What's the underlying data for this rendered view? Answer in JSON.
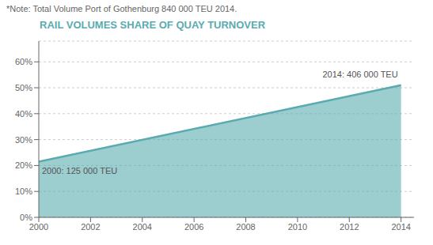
{
  "chart_data": {
    "type": "area",
    "title": "RAIL VOLUMES SHARE OF QUAY TURNOVER",
    "note": "*Note: Total Volume Port of Gothenburg 840 000 TEU 2014.",
    "x": [
      2000,
      2014
    ],
    "values": [
      0.215,
      0.51
    ],
    "color": "#5aabaf",
    "xlim": [
      2000,
      2014.5
    ],
    "xticks": [
      2000,
      2002,
      2004,
      2006,
      2008,
      2010,
      2012,
      2014
    ],
    "ylim": [
      0,
      0.68
    ],
    "yticks": [
      {
        "value": 0.0,
        "label": "0%"
      },
      {
        "value": 0.1,
        "label": "10%"
      },
      {
        "value": 0.2,
        "label": "20%"
      },
      {
        "value": 0.3,
        "label": "30%"
      },
      {
        "value": 0.4,
        "label": "40%"
      },
      {
        "value": 0.5,
        "label": "50%"
      },
      {
        "value": 0.6,
        "label": "60%"
      }
    ],
    "grid": true,
    "annotations": [
      "2000: 125 000 TEU",
      "2014: 406 000 TEU"
    ]
  }
}
